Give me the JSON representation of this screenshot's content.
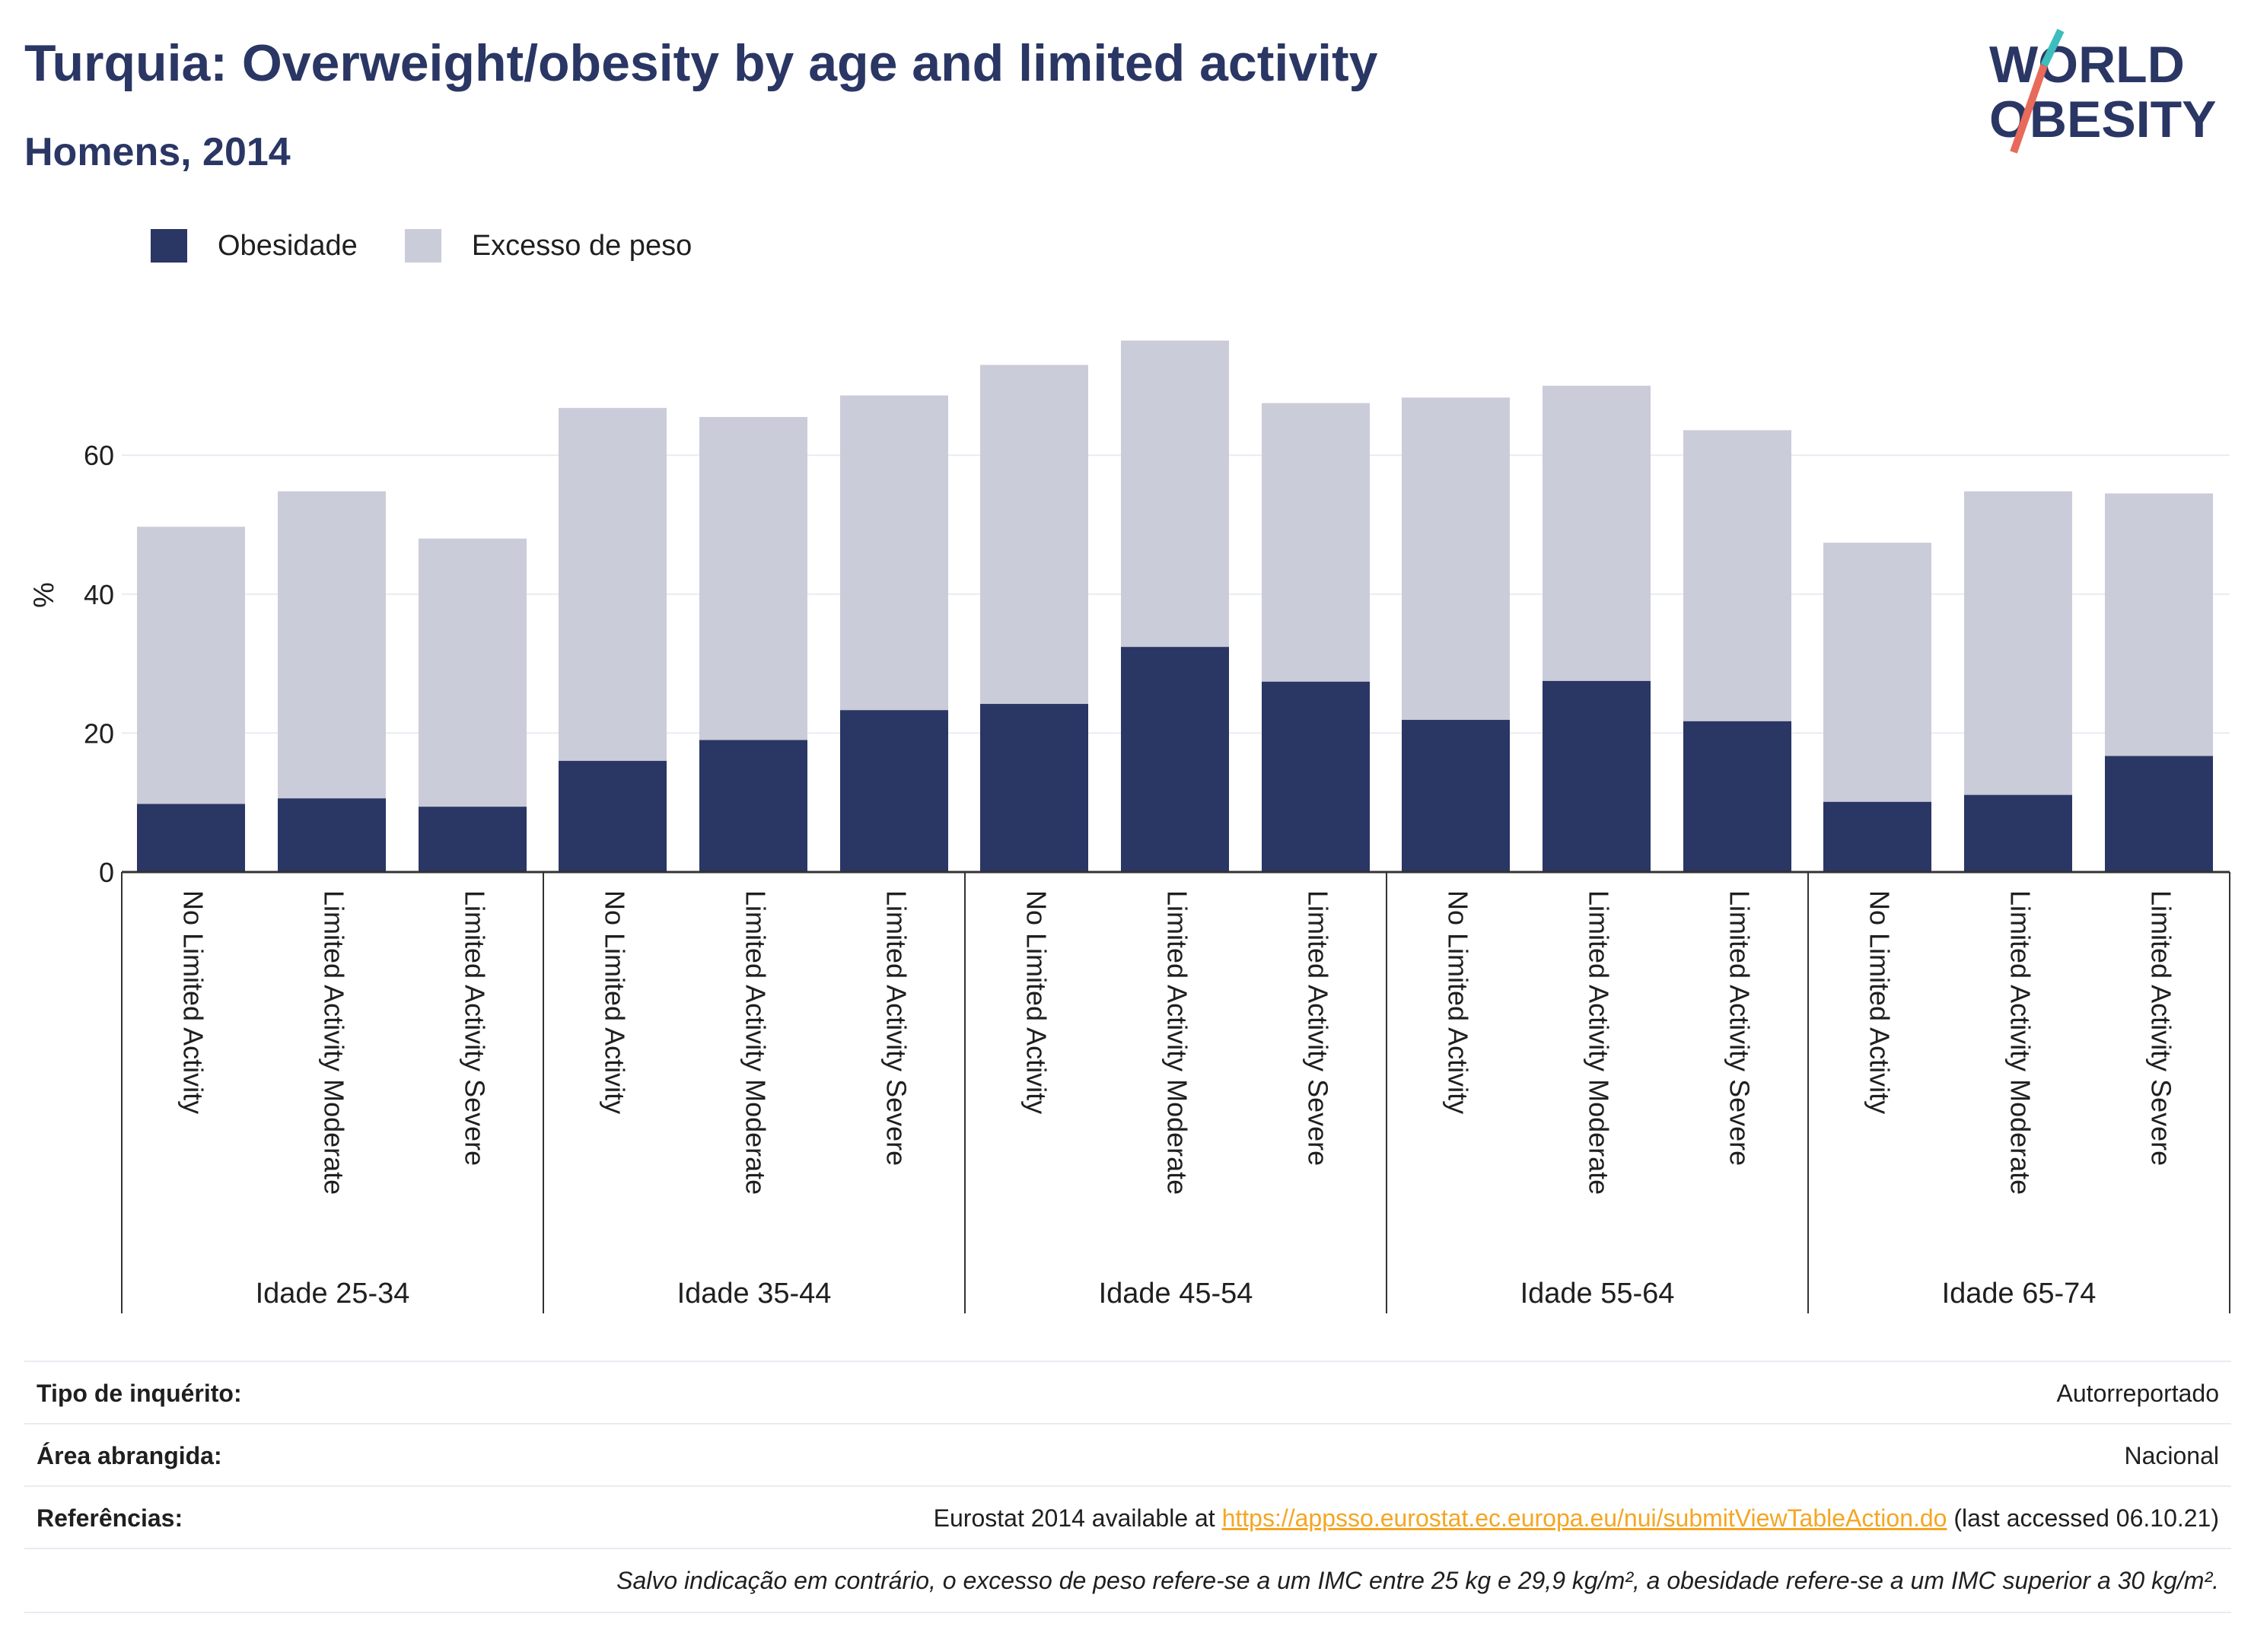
{
  "header": {
    "title": "Turquia: Overweight/obesity by age and limited activity",
    "subtitle": "Homens, 2014"
  },
  "logo": {
    "line1": "WORLD",
    "line2": "OBESITY",
    "colors": {
      "navy": "#2a3664",
      "teal": "#3dbdbd",
      "coral": "#e86a5a"
    }
  },
  "colors": {
    "obesity": "#2a3664",
    "overweight": "#cbccd9",
    "gridline": "#e9ebf2",
    "axis": "#333333"
  },
  "legend": {
    "items": [
      {
        "label": "Obesidade",
        "color": "#2a3664"
      },
      {
        "label": "Excesso de peso",
        "color": "#cbccd9"
      }
    ]
  },
  "chart_data": {
    "type": "bar",
    "stacked": false,
    "overlay": true,
    "ylabel": "%",
    "ylim": [
      0,
      80
    ],
    "yticks": [
      0,
      20,
      40,
      60
    ],
    "grid": true,
    "legend_position": "top-left",
    "groups": [
      {
        "label": "Idade 25-34",
        "categories": [
          "No Limited Activity",
          "Limited Activity Moderate",
          "Limited Activity Severe"
        ]
      },
      {
        "label": "Idade 35-44",
        "categories": [
          "No Limited Activity",
          "Limited Activity Moderate",
          "Limited Activity Severe"
        ]
      },
      {
        "label": "Idade 45-54",
        "categories": [
          "No Limited Activity",
          "Limited Activity Moderate",
          "Limited Activity Severe"
        ]
      },
      {
        "label": "Idade 55-64",
        "categories": [
          "No Limited Activity",
          "Limited Activity Moderate",
          "Limited Activity Severe"
        ]
      },
      {
        "label": "Idade 65-74",
        "categories": [
          "No Limited Activity",
          "Limited Activity Moderate",
          "Limited Activity Severe"
        ]
      }
    ],
    "series": [
      {
        "name": "Excesso de peso",
        "values": [
          49.7,
          54.8,
          48.0,
          66.8,
          65.5,
          68.6,
          73.0,
          76.5,
          67.5,
          68.3,
          70.0,
          63.6,
          47.4,
          54.8,
          54.5
        ]
      },
      {
        "name": "Obesidade",
        "values": [
          9.8,
          10.6,
          9.4,
          16.0,
          19.0,
          23.3,
          24.2,
          32.4,
          27.4,
          21.9,
          27.5,
          21.7,
          10.1,
          11.1,
          16.7
        ]
      }
    ]
  },
  "meta": {
    "rows": [
      {
        "label": "Tipo de inquérito:",
        "value": "Autorreportado"
      },
      {
        "label": "Área abrangida:",
        "value": "Nacional"
      }
    ],
    "references": {
      "label": "Referências:",
      "prefix": "Eurostat 2014 available at ",
      "link": "https://appsso.eurostat.ec.europa.eu/nui/submitViewTableAction.do",
      "suffix": " (last accessed 06.10.21)"
    },
    "note": "Salvo indicação em contrário, o excesso de peso refere-se a um IMC entre 25 kg e 29,9 kg/m², a obesidade refere-se a um IMC superior a 30 kg/m²."
  }
}
